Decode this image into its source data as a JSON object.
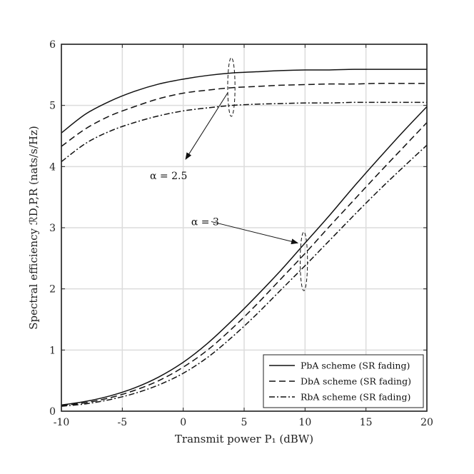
{
  "chart_data": {
    "type": "line",
    "xlabel": "Transmit power P₁ (dBW)",
    "ylabel": "Spectral efficiency ℛD,P,R (nats/s/Hz)",
    "xlim": [
      -10,
      20
    ],
    "ylim": [
      0,
      6
    ],
    "xticks": [
      -10,
      -5,
      0,
      5,
      10,
      15,
      20
    ],
    "yticks": [
      0,
      1,
      2,
      3,
      4,
      5,
      6
    ],
    "grid": true,
    "legend_position": "bottom-right",
    "series": [
      {
        "name": "PbA scheme (SR fading)",
        "group": "α = 2.5",
        "style": "solid",
        "x": [
          -10,
          -8,
          -6,
          -4,
          -2,
          0,
          2,
          4,
          6,
          8,
          10,
          12,
          14,
          16,
          18,
          20
        ],
        "y": [
          4.55,
          4.86,
          5.07,
          5.23,
          5.35,
          5.43,
          5.49,
          5.53,
          5.55,
          5.57,
          5.58,
          5.58,
          5.59,
          5.59,
          5.59,
          5.59
        ]
      },
      {
        "name": "DbA scheme (SR fading)",
        "group": "α = 2.5",
        "style": "dashed",
        "x": [
          -10,
          -8,
          -6,
          -4,
          -2,
          0,
          2,
          4,
          6,
          8,
          10,
          12,
          14,
          16,
          18,
          20
        ],
        "y": [
          4.33,
          4.62,
          4.83,
          4.98,
          5.11,
          5.2,
          5.25,
          5.29,
          5.31,
          5.33,
          5.34,
          5.35,
          5.35,
          5.36,
          5.36,
          5.36
        ]
      },
      {
        "name": "RbA scheme (SR fading)",
        "group": "α = 2.5",
        "style": "dashdot",
        "x": [
          -10,
          -8,
          -6,
          -4,
          -2,
          0,
          2,
          4,
          6,
          8,
          10,
          12,
          14,
          16,
          18,
          20
        ],
        "y": [
          4.08,
          4.38,
          4.58,
          4.72,
          4.83,
          4.91,
          4.96,
          5.0,
          5.02,
          5.03,
          5.04,
          5.04,
          5.05,
          5.05,
          5.05,
          5.05
        ]
      },
      {
        "name": "PbA scheme (SR fading)",
        "group": "α = 3",
        "style": "solid",
        "x": [
          -10,
          -8,
          -6,
          -4,
          -2,
          0,
          2,
          4,
          6,
          8,
          10,
          12,
          14,
          16,
          18,
          20
        ],
        "y": [
          0.1,
          0.16,
          0.25,
          0.38,
          0.56,
          0.8,
          1.11,
          1.48,
          1.88,
          2.3,
          2.75,
          3.2,
          3.67,
          4.12,
          4.56,
          4.98
        ]
      },
      {
        "name": "DbA scheme (SR fading)",
        "group": "α = 3",
        "style": "dashed",
        "x": [
          -10,
          -8,
          -6,
          -4,
          -2,
          0,
          2,
          4,
          6,
          8,
          10,
          12,
          14,
          16,
          18,
          20
        ],
        "y": [
          0.09,
          0.14,
          0.22,
          0.34,
          0.5,
          0.72,
          1.0,
          1.35,
          1.74,
          2.16,
          2.58,
          3.02,
          3.45,
          3.88,
          4.3,
          4.72
        ]
      },
      {
        "name": "RbA scheme (SR fading)",
        "group": "α = 3",
        "style": "dashdot",
        "x": [
          -10,
          -8,
          -6,
          -4,
          -2,
          0,
          2,
          4,
          6,
          8,
          10,
          12,
          14,
          16,
          18,
          20
        ],
        "y": [
          0.08,
          0.12,
          0.19,
          0.29,
          0.43,
          0.62,
          0.88,
          1.21,
          1.58,
          1.98,
          2.38,
          2.79,
          3.2,
          3.6,
          3.98,
          4.35
        ]
      }
    ],
    "annotations": [
      {
        "text": "α = 2.5",
        "text_at": [
          -1.2,
          3.85
        ],
        "arrow_to": [
          0.2,
          4.12
        ],
        "ellipse_center": [
          3.95,
          5.3
        ],
        "ellipse_radius": [
          0.3,
          0.48
        ]
      },
      {
        "text": "α = 3",
        "text_at": [
          1.8,
          3.1
        ],
        "arrow_from": [
          2.3,
          3.1
        ],
        "arrow_to": [
          9.4,
          2.75
        ],
        "ellipse_center": [
          9.9,
          2.45
        ],
        "ellipse_radius": [
          0.3,
          0.48
        ]
      }
    ]
  }
}
